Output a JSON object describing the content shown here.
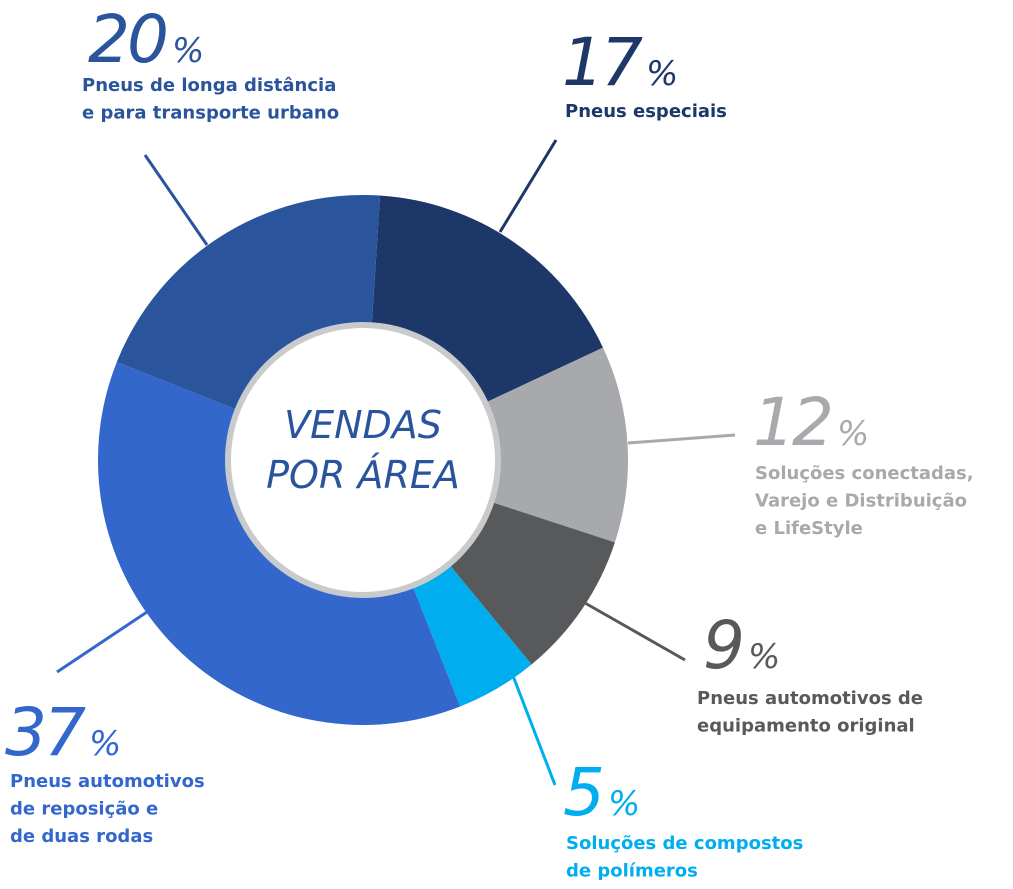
{
  "chart_data": {
    "type": "donut",
    "center_label": [
      "VENDAS",
      "POR ÁREA"
    ],
    "unit": "%",
    "categories": [
      [
        "Pneus especiais"
      ],
      [
        "Soluções conectadas,",
        "Varejo e Distribuição",
        "e LifeStyle"
      ],
      [
        "Pneus automotivos de",
        "equipamento original"
      ],
      [
        "Soluções de compostos",
        "de polímeros"
      ],
      [
        "Pneus automotivos",
        "de reposição e",
        "de duas rodas"
      ],
      [
        "Pneus de longa distância",
        "e para transporte urbano"
      ]
    ],
    "values": [
      17,
      12,
      9,
      5,
      37,
      20
    ],
    "colors": [
      "#1c3768",
      "#a7a9ac",
      "#58595b",
      "#00aeef",
      "#3367cc",
      "#2a549c"
    ]
  }
}
